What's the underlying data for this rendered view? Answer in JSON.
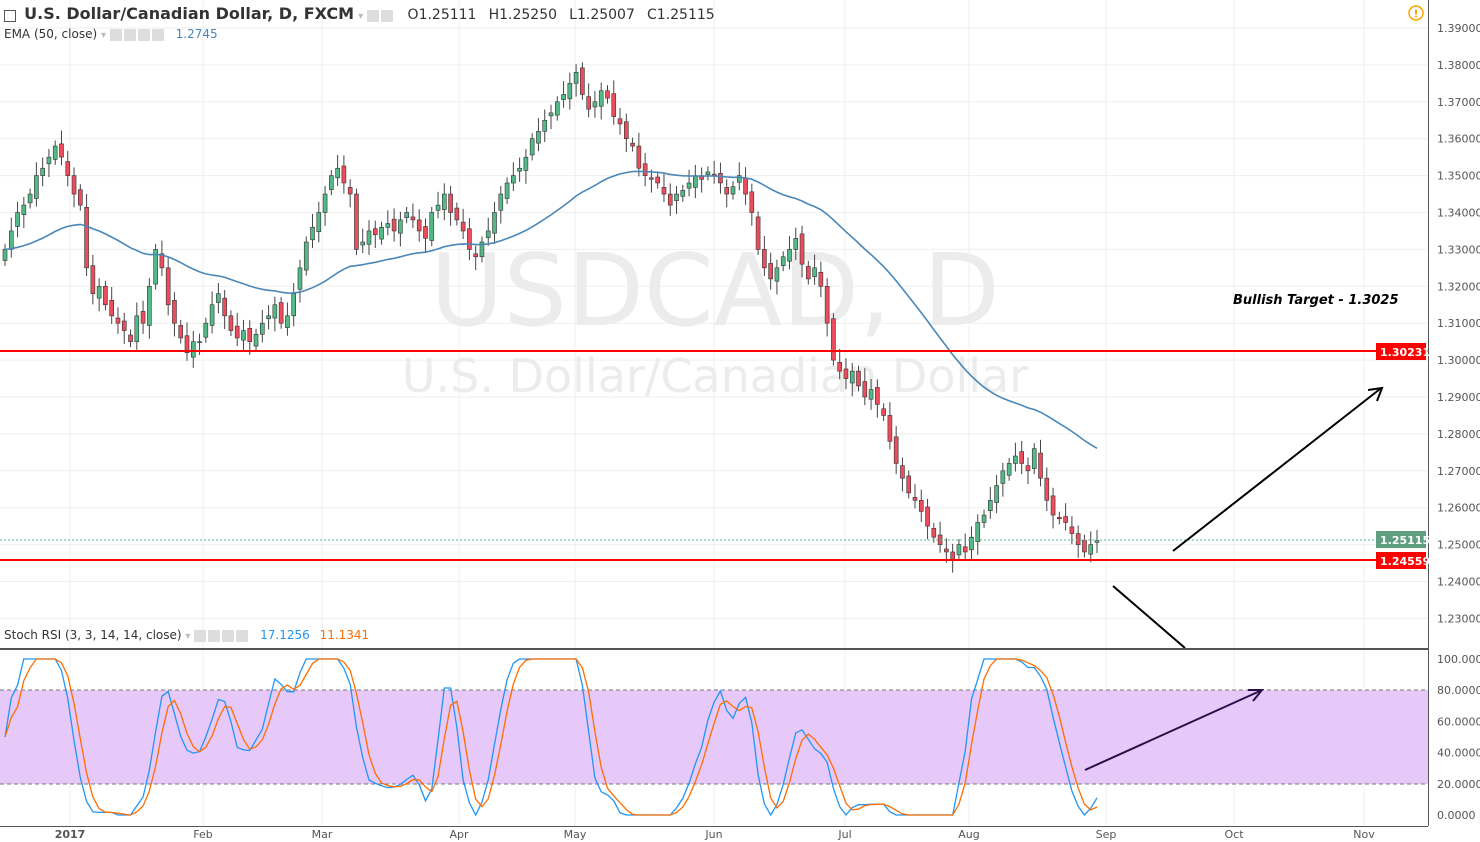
{
  "header": {
    "title": "U.S. Dollar/Canadian Dollar, D, FXCM",
    "open": "O1.25111",
    "high": "H1.25250",
    "low": "L1.25007",
    "close": "C1.25115",
    "ema_label": "EMA (50, close)",
    "ema_value": "1.2745",
    "stoch_label": "Stoch RSI (3, 3, 14, 14, close)",
    "stoch_k": "17.1256",
    "stoch_d": "11.1341",
    "alert_icon": "warning-icon"
  },
  "watermark": {
    "symbol": "USDCAD, D",
    "name": "U.S. Dollar/Canadian Dollar"
  },
  "annotation": {
    "text": "Bullish Target - 1.3025"
  },
  "price_tags": {
    "resistance": "1.30231",
    "current": "1.25115",
    "support": "1.24559"
  },
  "colors": {
    "up": "#53b987",
    "down": "#eb4d5c",
    "ema": "#4a87b8",
    "k": "#2196f3",
    "d": "#ff6d00",
    "level": "#ff0000",
    "band": "#e6c8f9"
  },
  "chart_data": [
    {
      "type": "candlestick",
      "title": "U.S. Dollar/Canadian Dollar, D, FXCM",
      "ylim": [
        1.22,
        1.395
      ],
      "y_ticks": [
        "1.39000",
        "1.38000",
        "1.37000",
        "1.36000",
        "1.35000",
        "1.34000",
        "1.33000",
        "1.32000",
        "1.31000",
        "1.30000",
        "1.29000",
        "1.28000",
        "1.27000",
        "1.26000",
        "1.25000",
        "1.24000",
        "1.23000"
      ],
      "x_ticks": [
        "2017",
        "Feb",
        "Mar",
        "Apr",
        "May",
        "Jun",
        "Jul",
        "Aug",
        "Sep",
        "Oct",
        "Nov"
      ],
      "closes": [
        1.33,
        1.335,
        1.34,
        1.342,
        1.345,
        1.35,
        1.352,
        1.355,
        1.358,
        1.355,
        1.35,
        1.345,
        1.342,
        1.325,
        1.318,
        1.32,
        1.315,
        1.312,
        1.31,
        1.308,
        1.305,
        1.312,
        1.31,
        1.32,
        1.33,
        1.325,
        1.315,
        1.31,
        1.306,
        1.302,
        1.305,
        1.305,
        1.31,
        1.315,
        1.318,
        1.312,
        1.308,
        1.306,
        1.308,
        1.305,
        1.307,
        1.31,
        1.312,
        1.315,
        1.31,
        1.312,
        1.318,
        1.325,
        1.332,
        1.336,
        1.34,
        1.345,
        1.35,
        1.352,
        1.348,
        1.345,
        1.33,
        1.332,
        1.335,
        1.334,
        1.336,
        1.337,
        1.335,
        1.338,
        1.34,
        1.338,
        1.335,
        1.333,
        1.34,
        1.342,
        1.345,
        1.34,
        1.338,
        1.335,
        1.33,
        1.328,
        1.332,
        1.335,
        1.34,
        1.345,
        1.348,
        1.35,
        1.352,
        1.355,
        1.36,
        1.362,
        1.365,
        1.367,
        1.37,
        1.372,
        1.375,
        1.378,
        1.372,
        1.368,
        1.37,
        1.373,
        1.371,
        1.366,
        1.364,
        1.36,
        1.358,
        1.352,
        1.35,
        1.349,
        1.348,
        1.345,
        1.342,
        1.345,
        1.346,
        1.348,
        1.35,
        1.349,
        1.351,
        1.35,
        1.348,
        1.345,
        1.347,
        1.35,
        1.345,
        1.34,
        1.33,
        1.325,
        1.322,
        1.325,
        1.328,
        1.33,
        1.333,
        1.326,
        1.322,
        1.325,
        1.32,
        1.31,
        1.3,
        1.297,
        1.295,
        1.297,
        1.293,
        1.29,
        1.292,
        1.288,
        1.285,
        1.278,
        1.272,
        1.268,
        1.264,
        1.262,
        1.259,
        1.255,
        1.252,
        1.25,
        1.248,
        1.246,
        1.25,
        1.248,
        1.252,
        1.256,
        1.258,
        1.262,
        1.266,
        1.27,
        1.272,
        1.274,
        1.272,
        1.27,
        1.276,
        1.268,
        1.262,
        1.258,
        1.257,
        1.256,
        1.253,
        1.25,
        1.248,
        1.25,
        1.2511
      ],
      "horizontal_levels": [
        1.30231,
        1.24559
      ],
      "current_price": 1.25115
    },
    {
      "type": "line",
      "title": "Stoch RSI (3, 3, 14, 14, close)",
      "ylim": [
        0,
        100
      ],
      "y_ticks": [
        "100.0000",
        "80.0000",
        "60.0000",
        "40.0000",
        "20.0000",
        "0.0000"
      ],
      "band": [
        20,
        80
      ]
    }
  ]
}
